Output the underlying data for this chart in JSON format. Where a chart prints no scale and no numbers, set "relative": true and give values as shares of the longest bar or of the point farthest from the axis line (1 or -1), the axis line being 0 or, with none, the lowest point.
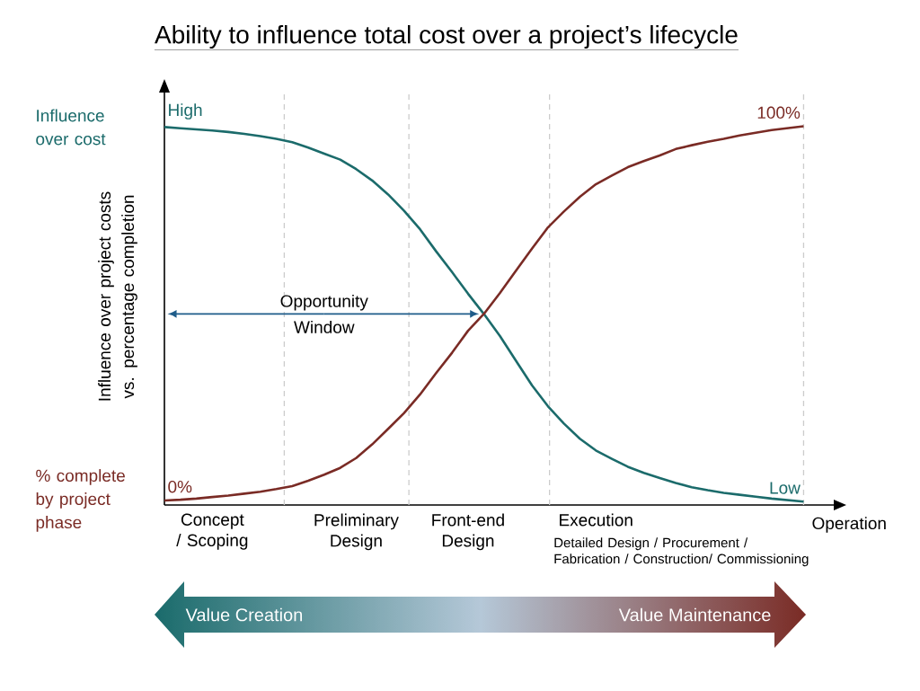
{
  "chart_data": {
    "type": "line",
    "title": "Ability to influence total cost over a project’s lifecycle",
    "ylabel": "Influence over project costs vs. percentage completion",
    "xlabel": "Operation",
    "relative": true,
    "categories": [
      null,
      null,
      null,
      "Concept / Scoping",
      null,
      null,
      null,
      null,
      null,
      null,
      null,
      null,
      "Preliminary Design",
      null,
      null,
      null,
      null,
      null,
      null,
      "Front-end Design",
      null,
      null,
      null,
      null,
      null,
      null,
      null,
      "Execution",
      null,
      null,
      null,
      null,
      null,
      null,
      null,
      null,
      null,
      null,
      null,
      null,
      null
    ],
    "series": [
      {
        "name": "Influence over cost",
        "color": "#1b6b6b",
        "values": [
          0.998,
          0.995,
          0.992,
          0.989,
          0.985,
          0.98,
          0.974,
          0.967,
          0.958,
          0.944,
          0.928,
          0.912,
          0.887,
          0.857,
          0.82,
          0.777,
          0.728,
          0.67,
          0.615,
          0.558,
          0.504,
          0.446,
          0.381,
          0.316,
          0.261,
          0.215,
          0.175,
          0.144,
          0.122,
          0.101,
          0.085,
          0.071,
          0.058,
          0.047,
          0.039,
          0.032,
          0.027,
          0.022,
          0.017,
          0.013,
          0.009
        ]
      },
      {
        "name": "% complete by project phase",
        "color": "#7a2b25",
        "values": [
          0.012,
          0.014,
          0.017,
          0.021,
          0.025,
          0.03,
          0.035,
          0.042,
          0.05,
          0.064,
          0.08,
          0.098,
          0.124,
          0.16,
          0.201,
          0.243,
          0.292,
          0.348,
          0.402,
          0.46,
          0.505,
          0.56,
          0.619,
          0.677,
          0.733,
          0.775,
          0.814,
          0.847,
          0.87,
          0.892,
          0.908,
          0.923,
          0.94,
          0.95,
          0.959,
          0.967,
          0.976,
          0.983,
          0.99,
          0.995,
          1.0
        ]
      }
    ],
    "annotations": [
      "Opportunity Window",
      "High",
      "Low",
      "0%",
      "100%",
      "Detailed Design / Procurement / Fabrication / Construction/ Commissioning",
      "Value Creation",
      "Value Maintenance"
    ]
  }
}
